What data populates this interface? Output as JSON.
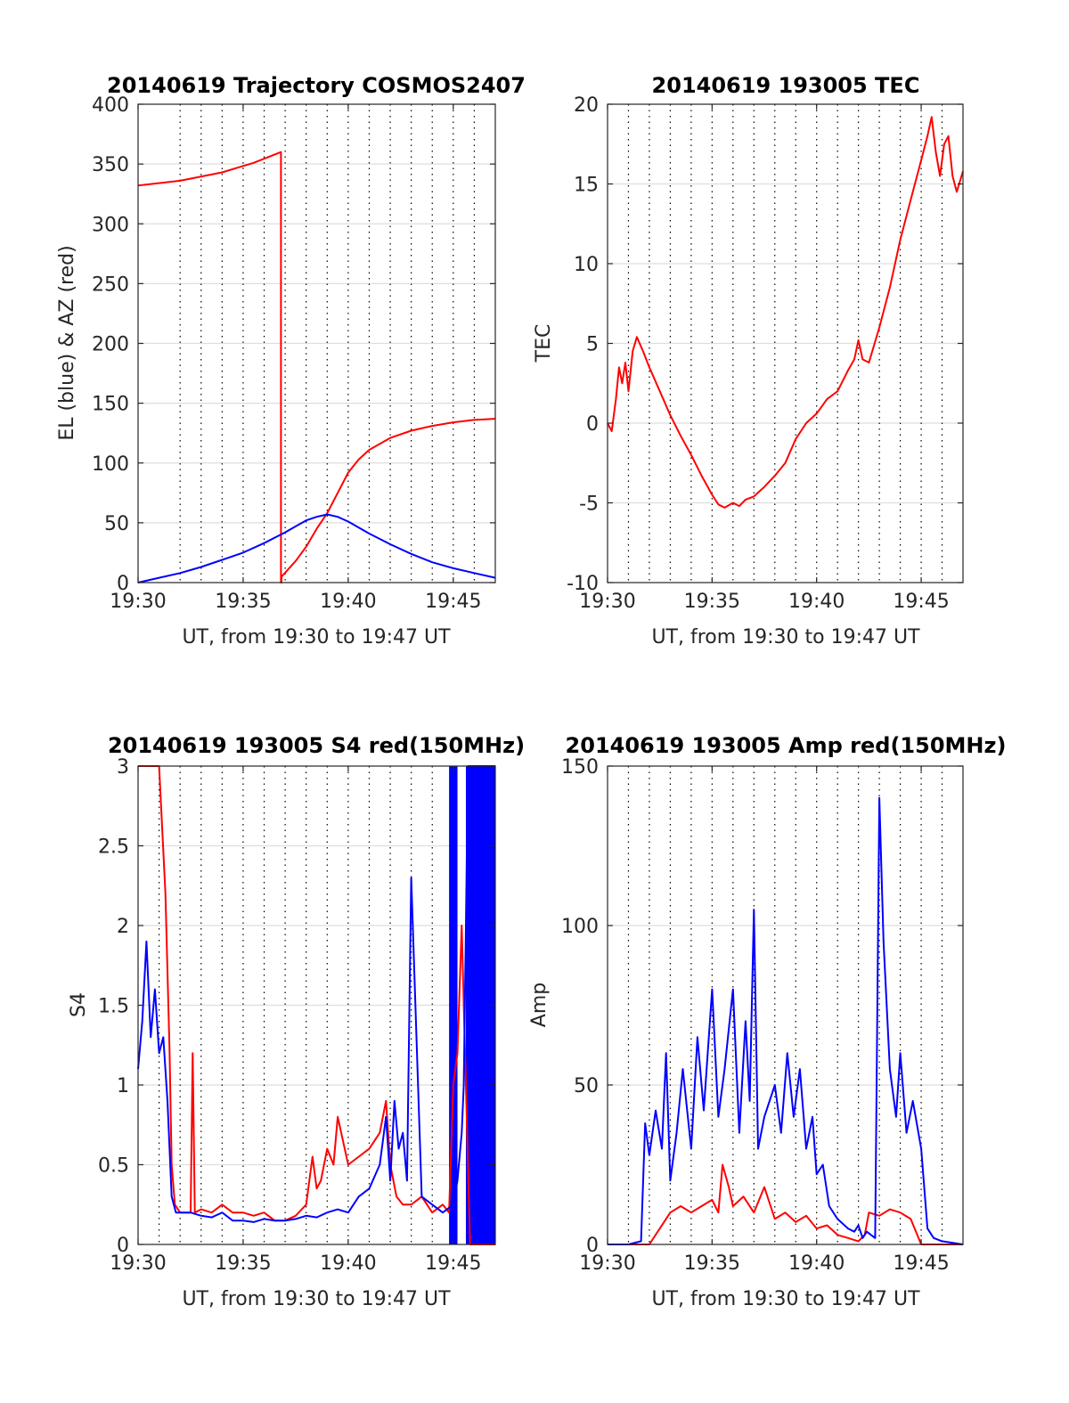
{
  "colors": {
    "red": "#ff0000",
    "blue": "#0000ff"
  },
  "chart_data": [
    {
      "id": "traj",
      "type": "line",
      "title": "20140619 Trajectory COSMOS2407",
      "xlabel": "UT, from 19:30 to 19:47 UT",
      "ylabel": "EL (blue) & AZ (red)",
      "xlim": [
        0,
        17
      ],
      "ylim": [
        0,
        400
      ],
      "x_ticks": [
        0,
        5,
        10,
        15
      ],
      "x_tick_labels": [
        "19:30",
        "19:35",
        "19:40",
        "19:45"
      ],
      "y_ticks": [
        0,
        50,
        100,
        150,
        200,
        250,
        300,
        350,
        400
      ],
      "y_tick_labels": [
        "0",
        "50",
        "100",
        "150",
        "200",
        "250",
        "300",
        "350",
        "400"
      ],
      "vgrid_minutes": [
        2,
        3,
        4,
        6,
        7,
        8,
        9,
        11,
        12,
        13,
        14,
        16
      ],
      "series": [
        {
          "color": "red",
          "x": [
            0,
            2,
            4,
            5.5,
            6.8,
            6.801,
            6.82,
            6.83,
            7.5,
            8,
            8.5,
            9,
            9.5,
            10,
            10.5,
            11,
            12,
            13,
            14,
            15,
            16,
            17
          ],
          "y": [
            332,
            336,
            343,
            351,
            360,
            0,
            0,
            5,
            18,
            30,
            45,
            58,
            75,
            92,
            103,
            111,
            121,
            127,
            131,
            134,
            136,
            137
          ]
        },
        {
          "color": "blue",
          "x": [
            0,
            1,
            2,
            3,
            4,
            5,
            6,
            7,
            7.5,
            8,
            8.5,
            9,
            9.5,
            10,
            10.5,
            11,
            12,
            13,
            14,
            15,
            16,
            17
          ],
          "y": [
            0,
            4,
            8,
            13,
            19,
            25,
            33,
            42,
            47,
            52,
            55,
            57,
            55,
            51,
            46,
            41,
            32,
            24,
            17,
            12,
            8,
            4
          ]
        }
      ]
    },
    {
      "id": "tec",
      "type": "line",
      "title": "20140619 193005 TEC",
      "xlabel": "UT, from 19:30 to 19:47 UT",
      "ylabel": "TEC",
      "xlim": [
        0,
        17
      ],
      "ylim": [
        -10,
        20
      ],
      "x_ticks": [
        0,
        5,
        10,
        15
      ],
      "x_tick_labels": [
        "19:30",
        "19:35",
        "19:40",
        "19:45"
      ],
      "y_ticks": [
        -10,
        -5,
        0,
        5,
        10,
        15,
        20
      ],
      "y_tick_labels": [
        "-10",
        "-5",
        "0",
        "5",
        "10",
        "15",
        "20"
      ],
      "vgrid_minutes": [
        1,
        2,
        3,
        4,
        6,
        7,
        8,
        9,
        11,
        12,
        13,
        14,
        16
      ],
      "series": [
        {
          "color": "red",
          "x": [
            0,
            0.2,
            0.4,
            0.55,
            0.7,
            0.85,
            1.0,
            1.2,
            1.4,
            1.7,
            2,
            2.5,
            3,
            3.5,
            4,
            4.5,
            5,
            5.3,
            5.6,
            6,
            6.3,
            6.6,
            7,
            7.5,
            8,
            8.5,
            9,
            9.5,
            10,
            10.5,
            11,
            11.5,
            11.8,
            12,
            12.2,
            12.5,
            13,
            13.5,
            14,
            14.5,
            15,
            15.3,
            15.5,
            15.7,
            15.9,
            16.1,
            16.3,
            16.5,
            16.7,
            17
          ],
          "y": [
            0,
            -0.5,
            1.5,
            3.5,
            2.5,
            3.8,
            2.0,
            4.5,
            5.4,
            4.5,
            3.5,
            2.0,
            0.5,
            -0.8,
            -2.0,
            -3.3,
            -4.5,
            -5.1,
            -5.3,
            -5.0,
            -5.2,
            -4.8,
            -4.6,
            -4.0,
            -3.3,
            -2.5,
            -1.0,
            0.0,
            0.6,
            1.5,
            2.0,
            3.3,
            4.0,
            5.2,
            4.0,
            3.8,
            6.0,
            8.5,
            11.5,
            14.0,
            16.5,
            18.0,
            19.2,
            17.0,
            15.5,
            17.5,
            18.0,
            15.5,
            14.5,
            15.8
          ]
        }
      ]
    },
    {
      "id": "s4",
      "type": "line",
      "title": "20140619 193005 S4 red(150MHz)",
      "xlabel": "UT, from 19:30 to 19:47 UT",
      "ylabel": "S4",
      "xlim": [
        0,
        17
      ],
      "ylim": [
        0,
        3
      ],
      "x_ticks": [
        0,
        5,
        10,
        15
      ],
      "x_tick_labels": [
        "19:30",
        "19:35",
        "19:40",
        "19:45"
      ],
      "y_ticks": [
        0,
        0.5,
        1,
        1.5,
        2,
        2.5,
        3
      ],
      "y_tick_labels": [
        "0",
        "0.5",
        "1",
        "1.5",
        "2",
        "2.5",
        "3"
      ],
      "vgrid_minutes": [
        1,
        2,
        3,
        4,
        6,
        7,
        8,
        9,
        11,
        12,
        13,
        14,
        16
      ],
      "series": [
        {
          "color": "red",
          "x": [
            0,
            0.5,
            1.0,
            1.3,
            1.5,
            1.6,
            1.75,
            2,
            2.5,
            2.6,
            2.7,
            3,
            3.5,
            4,
            4.5,
            5,
            5.5,
            6,
            6.5,
            7,
            7.5,
            8,
            8.3,
            8.5,
            8.7,
            9,
            9.3,
            9.5,
            10,
            10.5,
            11,
            11.5,
            11.8,
            12.0,
            12.3,
            12.6,
            13,
            13.5,
            14,
            14.5,
            14.8,
            15.0,
            15.2,
            15.4,
            15.5,
            15.6,
            15.8,
            16.2,
            17
          ],
          "y": [
            3.0,
            3.0,
            3.0,
            2.2,
            1.2,
            0.5,
            0.25,
            0.2,
            0.2,
            1.2,
            0.2,
            0.22,
            0.2,
            0.25,
            0.2,
            0.2,
            0.18,
            0.2,
            0.15,
            0.15,
            0.18,
            0.25,
            0.55,
            0.35,
            0.4,
            0.6,
            0.5,
            0.8,
            0.5,
            0.55,
            0.6,
            0.7,
            0.9,
            0.5,
            0.3,
            0.25,
            0.25,
            0.3,
            0.2,
            0.25,
            0.2,
            1.0,
            1.2,
            2.0,
            1.5,
            1.0,
            0.0,
            0.0,
            0.0
          ]
        },
        {
          "color": "blue",
          "x": [
            0,
            0.2,
            0.4,
            0.6,
            0.8,
            1.0,
            1.2,
            1.4,
            1.6,
            1.8,
            2,
            2.5,
            3,
            3.5,
            4,
            4.5,
            5,
            5.5,
            6,
            6.5,
            7,
            7.5,
            8,
            8.5,
            9,
            9.5,
            10,
            10.5,
            11,
            11.5,
            11.8,
            12.0,
            12.2,
            12.4,
            12.6,
            12.8,
            13,
            13.5,
            14,
            14.5,
            15,
            15.2,
            15.4,
            15.5,
            15.6,
            15.7,
            16,
            16.5,
            17
          ],
          "y": [
            1.1,
            1.4,
            1.9,
            1.3,
            1.6,
            1.2,
            1.3,
            0.9,
            0.3,
            0.2,
            0.2,
            0.2,
            0.18,
            0.17,
            0.2,
            0.15,
            0.15,
            0.14,
            0.16,
            0.15,
            0.15,
            0.16,
            0.18,
            0.17,
            0.2,
            0.22,
            0.2,
            0.3,
            0.35,
            0.5,
            0.8,
            0.4,
            0.9,
            0.6,
            0.7,
            0.4,
            2.3,
            0.3,
            0.25,
            0.2,
            0.25,
            0.4,
            0.7,
            1.0,
            2.0,
            3.0,
            3.0,
            3.0,
            3.0
          ]
        }
      ],
      "blue_bands": [
        [
          14.8,
          15.2
        ],
        [
          15.6,
          17
        ]
      ]
    },
    {
      "id": "amp",
      "type": "line",
      "title": "20140619 193005 Amp red(150MHz)",
      "xlabel": "UT, from 19:30 to 19:47 UT",
      "ylabel": "Amp",
      "xlim": [
        0,
        17
      ],
      "ylim": [
        0,
        150
      ],
      "x_ticks": [
        0,
        5,
        10,
        15
      ],
      "x_tick_labels": [
        "19:30",
        "19:35",
        "19:40",
        "19:45"
      ],
      "y_ticks": [
        0,
        50,
        100,
        150
      ],
      "y_tick_labels": [
        "0",
        "50",
        "100",
        "150"
      ],
      "vgrid_minutes": [
        1,
        2,
        3,
        4,
        6,
        7,
        8,
        9,
        11,
        12,
        13,
        14,
        16
      ],
      "series": [
        {
          "color": "red",
          "x": [
            0,
            2,
            2.5,
            3,
            3.5,
            4,
            4.5,
            5,
            5.3,
            5.5,
            5.8,
            6,
            6.5,
            7,
            7.5,
            8,
            8.5,
            9,
            9.5,
            10,
            10.5,
            11,
            11.5,
            12,
            12.3,
            12.5,
            13,
            13.5,
            14,
            14.5,
            15,
            15.5,
            17
          ],
          "y": [
            0,
            0,
            5,
            10,
            12,
            10,
            12,
            14,
            10,
            25,
            18,
            12,
            15,
            10,
            18,
            8,
            10,
            7,
            9,
            5,
            6,
            3,
            2,
            1,
            3,
            10,
            9,
            11,
            10,
            8,
            0,
            0,
            0
          ]
        },
        {
          "color": "blue",
          "x": [
            0,
            1,
            1.6,
            1.8,
            2,
            2.3,
            2.6,
            2.8,
            3,
            3.3,
            3.6,
            4,
            4.3,
            4.6,
            5,
            5.3,
            5.6,
            6,
            6.3,
            6.6,
            6.8,
            7,
            7.2,
            7.5,
            8,
            8.3,
            8.6,
            8.9,
            9.2,
            9.5,
            9.8,
            10,
            10.3,
            10.6,
            11,
            11.5,
            11.8,
            12,
            12.2,
            12.4,
            12.6,
            12.8,
            13,
            13.2,
            13.5,
            13.8,
            14,
            14.3,
            14.6,
            15,
            15.3,
            15.6,
            16,
            17
          ],
          "y": [
            0,
            0,
            1,
            38,
            28,
            42,
            30,
            60,
            20,
            35,
            55,
            30,
            65,
            42,
            80,
            40,
            55,
            80,
            35,
            70,
            45,
            105,
            30,
            40,
            50,
            35,
            60,
            40,
            55,
            30,
            40,
            22,
            25,
            12,
            8,
            5,
            4,
            6,
            2,
            4,
            3,
            2,
            140,
            95,
            55,
            40,
            60,
            35,
            45,
            30,
            5,
            2,
            1,
            0
          ]
        }
      ]
    }
  ]
}
